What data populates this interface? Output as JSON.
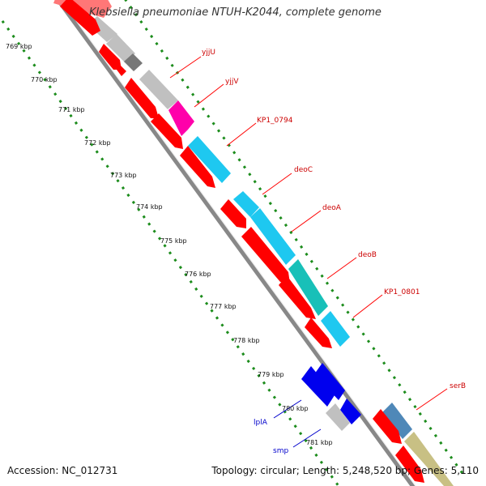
{
  "map": {
    "title": "Klebsiella pneumoniae NTUH-K2044, complete genome",
    "accession": "Accession: NC_012731",
    "summary": "Topology: circular; Length: 5,248,520 bp; Genes: 5,110",
    "tick_labels": [
      "769 kbp",
      "770 kbp",
      "771 kbp",
      "772 kbp",
      "773 kbp",
      "774 kbp",
      "775 kbp",
      "776 kbp",
      "777 kbp",
      "778 kbp",
      "779 kbp",
      "780 kbp",
      "781 kbp"
    ],
    "gene_labels": [
      {
        "text": "yjjU",
        "color": "#cc0000"
      },
      {
        "text": "yjjV",
        "color": "#cc0000"
      },
      {
        "text": "KP1_0794",
        "color": "#cc0000"
      },
      {
        "text": "deoC",
        "color": "#cc0000"
      },
      {
        "text": "deoA",
        "color": "#cc0000"
      },
      {
        "text": "deoB",
        "color": "#cc0000"
      },
      {
        "text": "KP1_0801",
        "color": "#cc0000"
      },
      {
        "text": "serB",
        "color": "#cc0000"
      },
      {
        "text": "lplA",
        "color": "#0000cc"
      },
      {
        "text": "smp",
        "color": "#0000cc"
      }
    ],
    "colors": {
      "cds": "#ff0000",
      "gray": "#c0c0c0",
      "dark_gray": "#777777",
      "magenta": "#ff00aa",
      "cyan": "#1ec8f0",
      "teal": "#18c0b8",
      "blue": "#0000ee",
      "steel": "#4f88b8",
      "khaki": "#c8c084",
      "backbone": "#888888",
      "ticks": "#1c8c1c"
    }
  }
}
